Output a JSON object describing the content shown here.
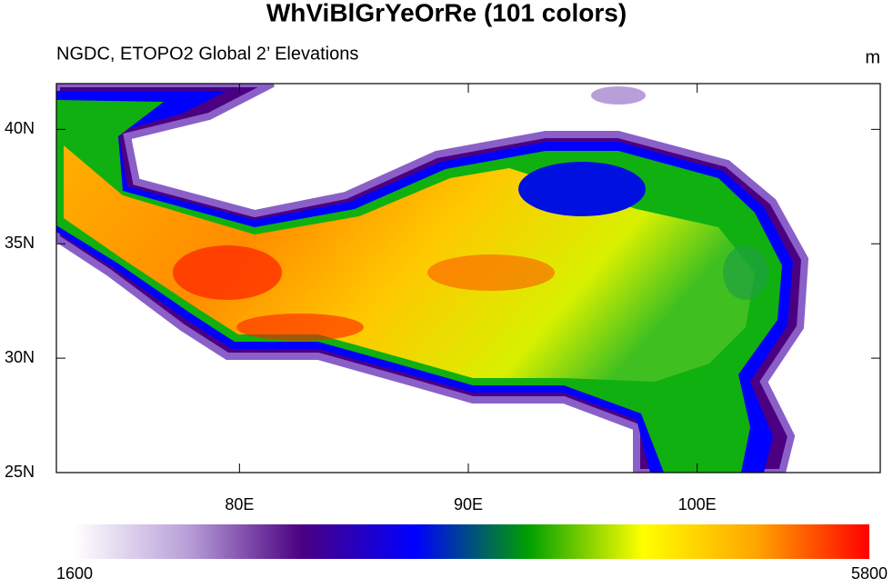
{
  "chart_data": {
    "type": "map",
    "title": "WhViBlGrYeOrRe (101 colors)",
    "subtitle": "NGDC, ETOPO2 Global 2’ Elevations",
    "units": "m",
    "xlim": [
      72,
      108
    ],
    "ylim": [
      25,
      42
    ],
    "xticks": [
      {
        "value": 80,
        "label": "80E"
      },
      {
        "value": 90,
        "label": "90E"
      },
      {
        "value": 100,
        "label": "100E"
      }
    ],
    "yticks": [
      {
        "value": 25,
        "label": "25N"
      },
      {
        "value": 30,
        "label": "30N"
      },
      {
        "value": 35,
        "label": "35N"
      },
      {
        "value": 40,
        "label": "40N"
      }
    ],
    "colorbar_lim": [
      1600,
      5800
    ],
    "colorbar_ticks": [
      1600,
      5800
    ],
    "colormap": [
      "#ffffff",
      "#b89fd8",
      "#4b0082",
      "#0000ff",
      "#00a000",
      "#ffff00",
      "#ffa500",
      "#ff0000"
    ]
  }
}
